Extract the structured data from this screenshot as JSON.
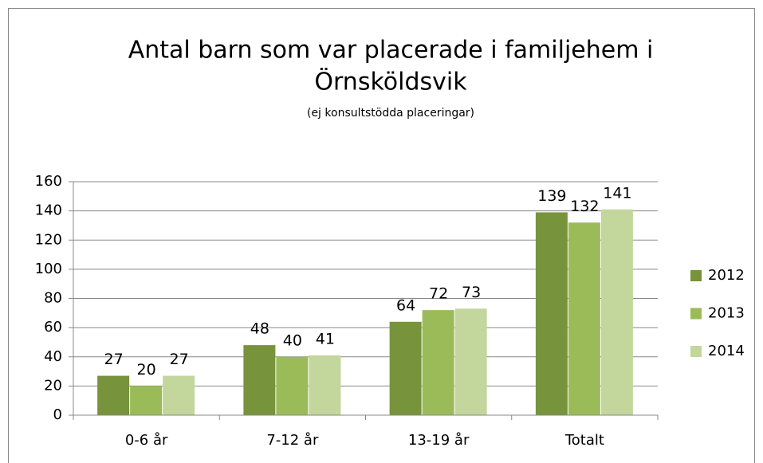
{
  "chart_data": {
    "type": "bar",
    "title": [
      "Antal barn som var placerade i familjehem i",
      "Örnsköldsvik"
    ],
    "subtitle": "(ej konsultstödda placeringar)",
    "categories": [
      "0-6 år",
      "7-12 år",
      "13-19 år",
      "Totalt"
    ],
    "series": [
      {
        "name": "2012",
        "color": "#77933c",
        "values": [
          27,
          48,
          64,
          139
        ]
      },
      {
        "name": "2013",
        "color": "#9bbb59",
        "values": [
          20,
          40,
          72,
          132
        ]
      },
      {
        "name": "2014",
        "color": "#c3d69b",
        "values": [
          27,
          41,
          73,
          141
        ]
      }
    ],
    "ylim": [
      0,
      160
    ],
    "yticks": [
      0,
      20,
      40,
      60,
      80,
      100,
      120,
      140,
      160
    ],
    "grid": true,
    "legend": "right"
  }
}
